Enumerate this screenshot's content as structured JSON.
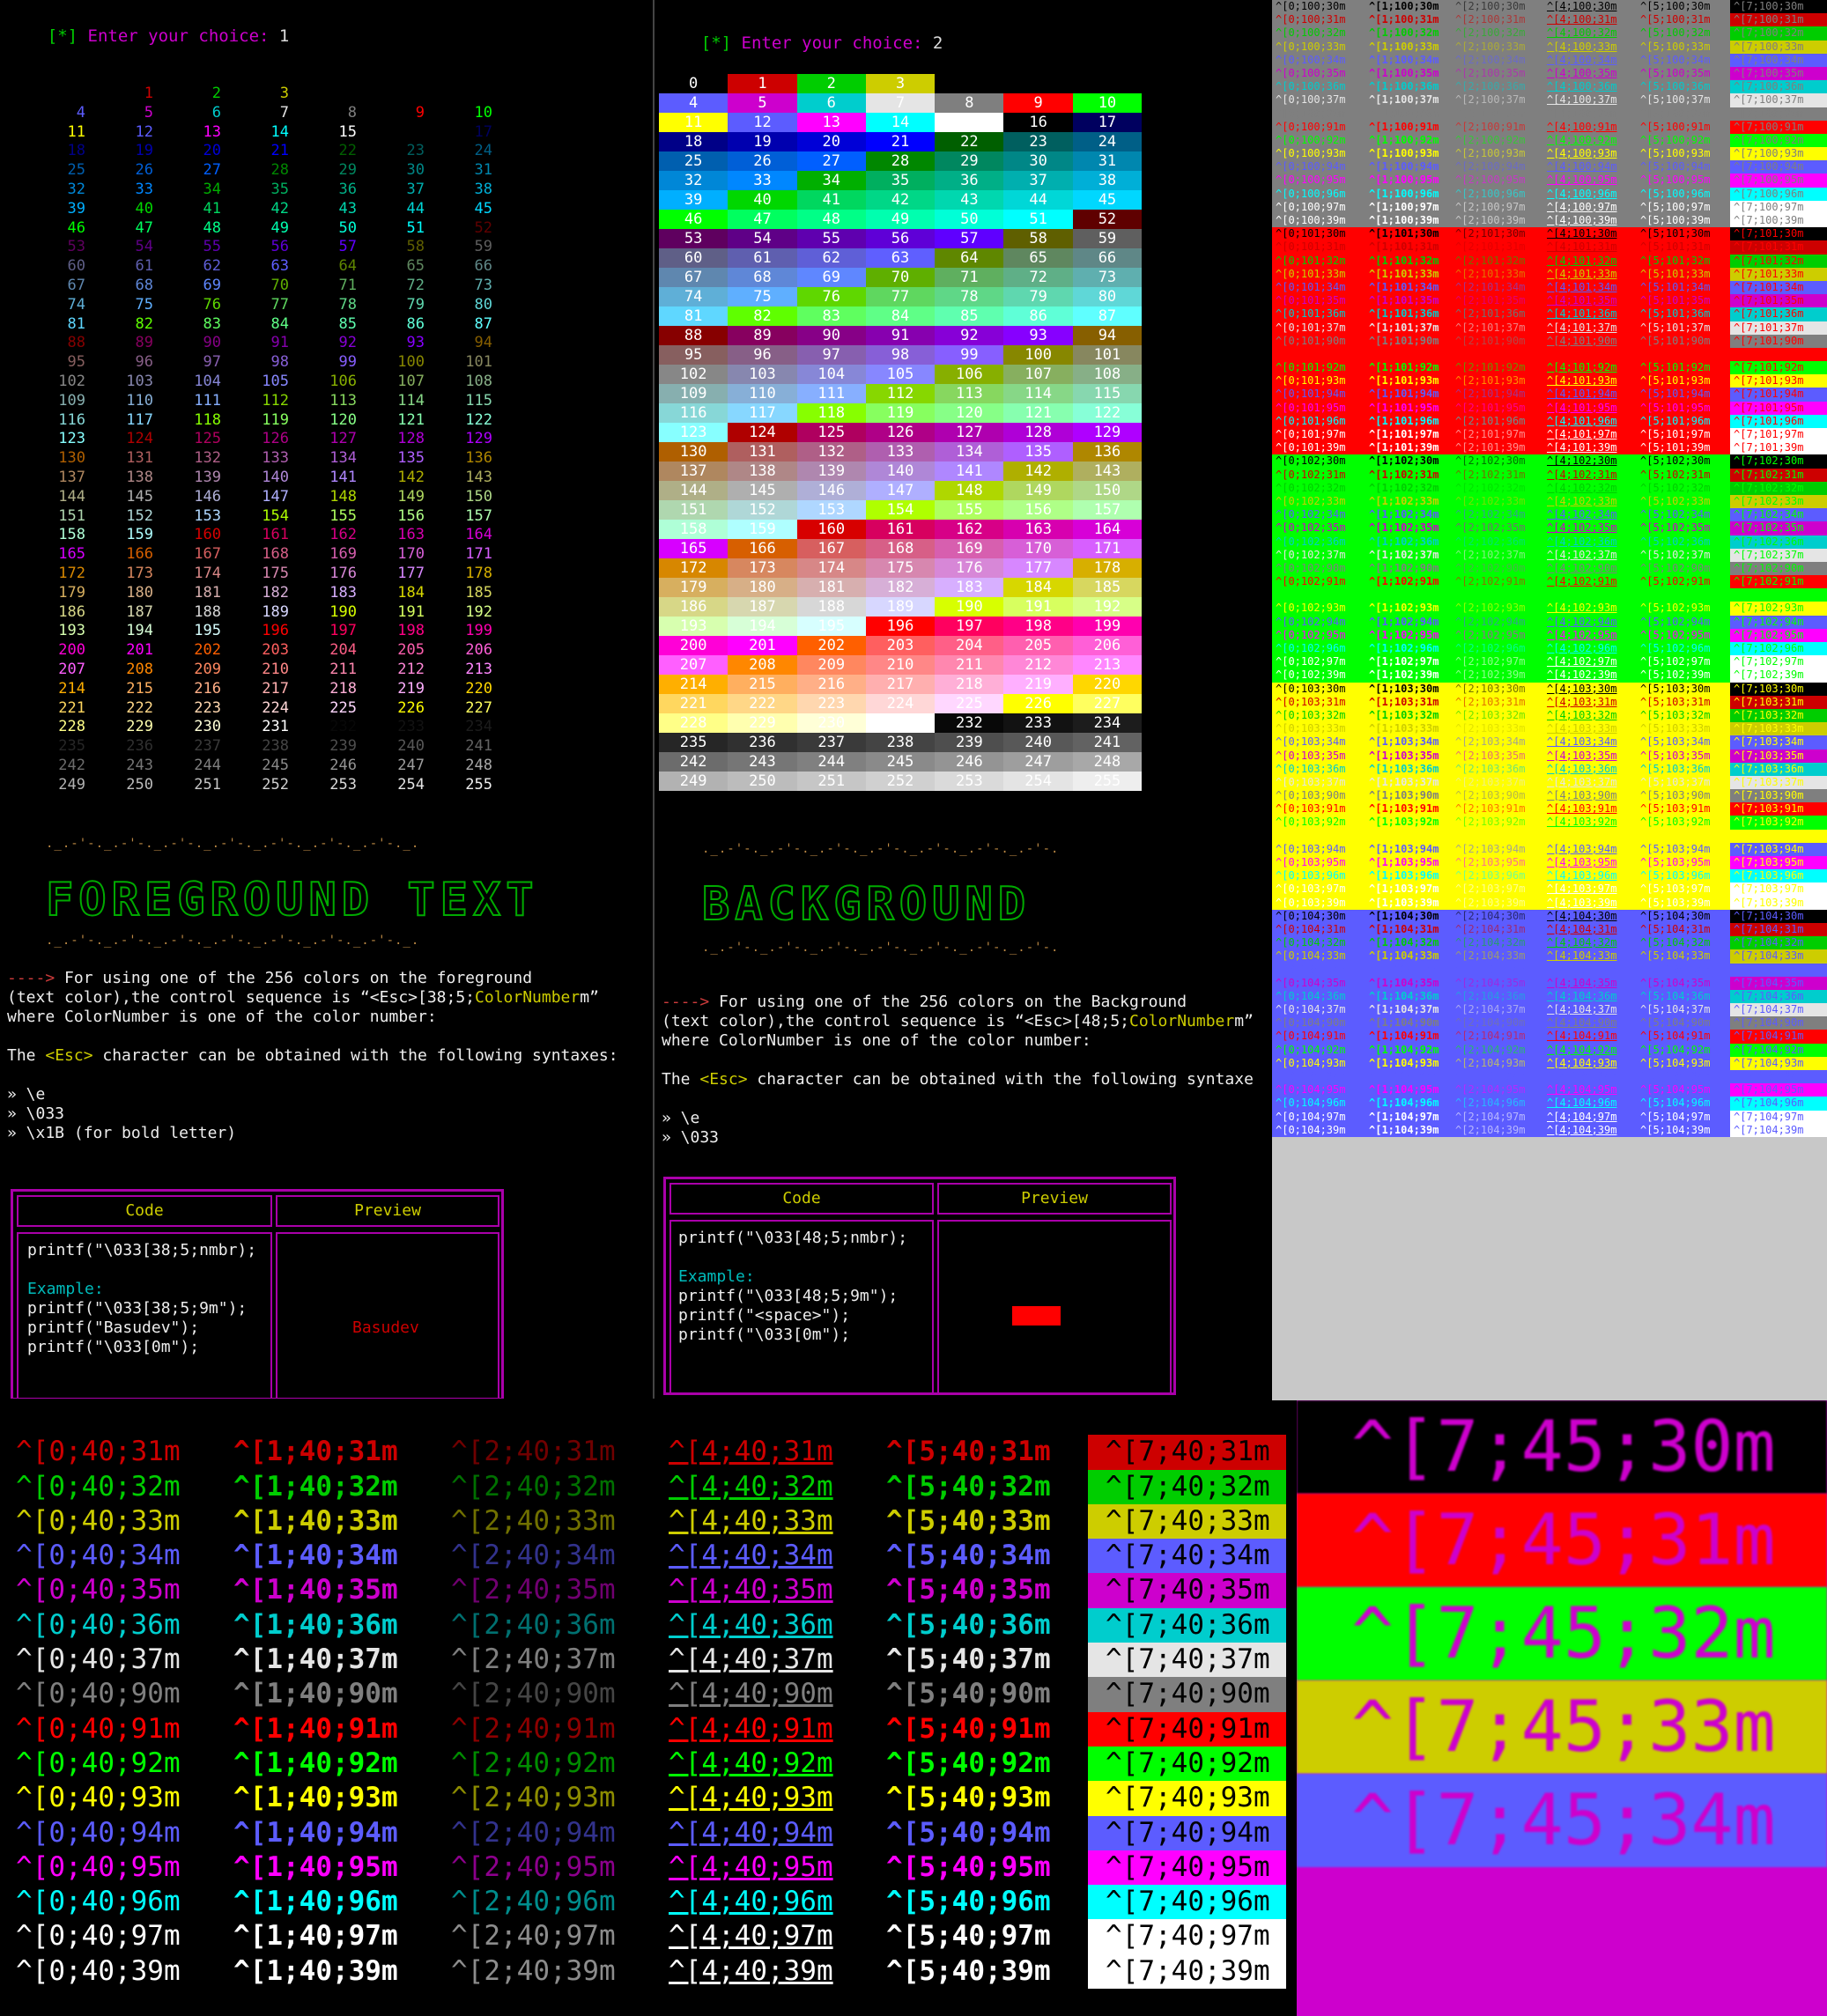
{
  "left_terminal": {
    "prompt_marker": "[*]",
    "prompt_text": "Enter your choice:",
    "choice": "1",
    "title_art": "FOREGROUND TEXT",
    "deco_line": "._.-'-._.-'-._.-'-._.-'-._.-'-._.-'-._.-'-._.",
    "desc_arrow": "---->",
    "desc_line1": " For using one of the 256 colors on the foreground",
    "desc_line2a": "(text color),the control sequence is “<Esc>[38;5;",
    "desc_line2b": "ColorNumber",
    "desc_line2c": "m”",
    "desc_line3": "where ColorNumber is one of the color number:",
    "desc_line4a": "The ",
    "desc_line4b": "<Esc>",
    "desc_line4c": " character can be obtained with the following syntaxes:",
    "syntax1": "» \\e",
    "syntax2": "» \\033",
    "syntax3": "» \\x1B (for bold letter)",
    "table_code_header": "Code",
    "table_preview_header": "Preview",
    "code1": "printf(\"\\033[38;5;nmbr);",
    "example_label": "Example:",
    "code2": "printf(\"\\033[38;5;9m\");",
    "code3": "printf(\"Basudev\");",
    "code4": "printf(\"\\033[0m\");",
    "preview_text": "Basudev",
    "preview_color": "#cd0000"
  },
  "middle_terminal": {
    "prompt_marker": "[*]",
    "prompt_text": "Enter your choice:",
    "choice": "2",
    "title_art": "BACKGROUND",
    "deco_line": "._.-'-._.-'-._.-'-._.-'-._.-'-._.-'-._.-'-.",
    "desc_arrow": "---->",
    "desc_line1": " For using one of the 256 colors on the Background",
    "desc_line2a": "(text color),the control sequence is “<Esc>[48;5;",
    "desc_line2b": "ColorNumber",
    "desc_line2c": "m”",
    "desc_line3": "where ColorNumber is one of the color number:",
    "desc_line4a": "The ",
    "desc_line4b": "<Esc>",
    "desc_line4c": " character can be obtained with the following syntaxe",
    "syntax1": "» \\e",
    "syntax2": "» \\033",
    "table_code_header": "Code",
    "table_preview_header": "Preview",
    "code1": "printf(\"\\033[48;5;nmbr);",
    "example_label": "Example:",
    "code2": "printf(\"\\033[48;5;9m\");",
    "code3": "printf(\"<space>\");",
    "code4": "printf(\"\\033[0m\");",
    "preview_swatch_color": "#ff0000"
  },
  "colors": {
    "magenta": "#cd00cd",
    "green": "#00cd00",
    "yellow": "#cdcd00",
    "red": "#cd0000"
  },
  "attr_codes": [
    "0",
    "1",
    "2",
    "4",
    "5",
    "7"
  ],
  "fg_codes": [
    "30",
    "31",
    "32",
    "33",
    "34",
    "35",
    "36",
    "37",
    "90",
    "91",
    "92",
    "93",
    "94",
    "95",
    "96",
    "97",
    "39"
  ],
  "right_table_bgs": [
    "100",
    "101",
    "102",
    "103",
    "104"
  ],
  "bottom_bg": "40",
  "zoom_bg": "45",
  "zoom_lines": [
    "^[7;45;30m",
    "^[7;45;31m",
    "^[7;45;32m",
    "^[7;45;33m",
    "^[7;45;34m"
  ]
}
